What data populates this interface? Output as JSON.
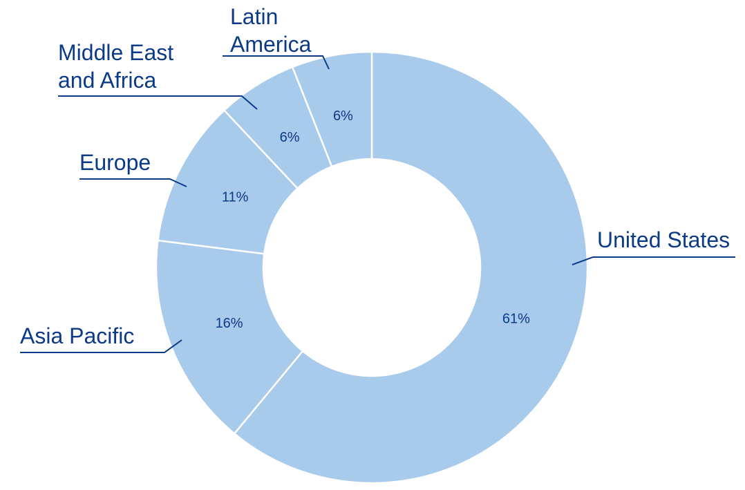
{
  "chart_data": {
    "type": "pie",
    "variant": "donut",
    "title": "",
    "categories": [
      "United States",
      "Asia Pacific",
      "Europe",
      "Middle East and Africa",
      "Latin America"
    ],
    "values": [
      61,
      16,
      11,
      6,
      6
    ],
    "value_labels": [
      "61%",
      "16%",
      "11%",
      "6%",
      "6%"
    ],
    "label_lines": [
      [
        "United States"
      ],
      [
        "Asia Pacific"
      ],
      [
        "Europe"
      ],
      [
        "Middle East",
        "and Africa"
      ],
      [
        "Latin",
        "America"
      ]
    ],
    "start": "12 o'clock",
    "direction": "clockwise",
    "legend": "none (direct labels with leader lines)"
  },
  "colors": {
    "slice_fill": "#a8caeb",
    "slice_border": "#ffffff",
    "text": "#0b3a87",
    "leader_line": "#0b3a87"
  }
}
